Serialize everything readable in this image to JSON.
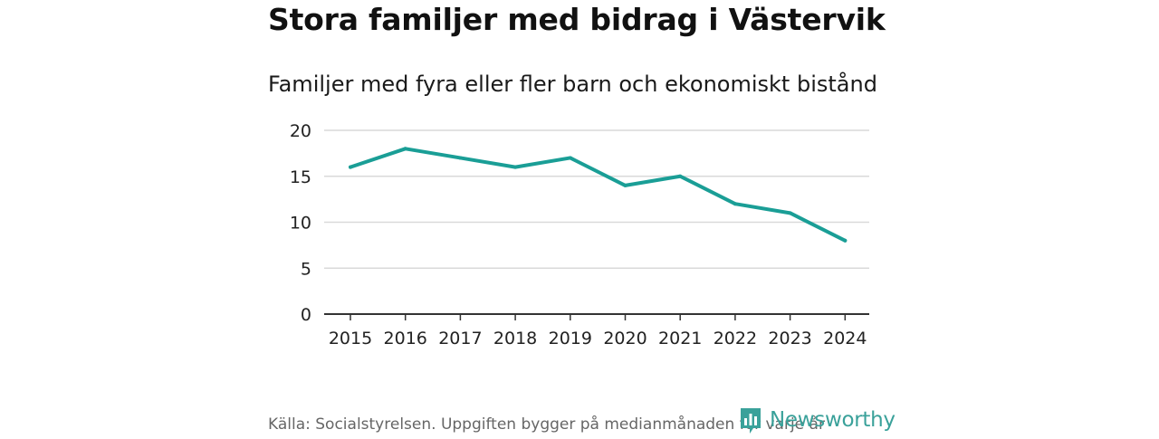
{
  "header": {
    "title": "Stora familjer med bidrag i Västervik",
    "subtitle": "Familjer med fyra eller fler barn och ekonomiskt bistånd"
  },
  "footer": {
    "source": "Källa: Socialstyrelsen. Uppgiften bygger på medianmånaden för varje år",
    "brand": "Newsworthy"
  },
  "colors": {
    "line": "#1a9e96",
    "grid": "#d9d9d9",
    "axis": "#333333",
    "brand": "#3aa19a"
  },
  "chart_data": {
    "type": "line",
    "title": "Familjer med fyra eller fler barn och ekonomiskt bistånd",
    "xlabel": "",
    "ylabel": "",
    "categories": [
      "2015",
      "2016",
      "2017",
      "2018",
      "2019",
      "2020",
      "2021",
      "2022",
      "2023",
      "2024"
    ],
    "series": [
      {
        "name": "Familjer",
        "values": [
          16,
          18,
          17,
          16,
          17,
          14,
          15,
          12,
          11,
          8
        ]
      }
    ],
    "ylim": [
      0,
      20
    ],
    "yticks": [
      0,
      5,
      10,
      15,
      20
    ],
    "grid": true,
    "legend": "none"
  }
}
